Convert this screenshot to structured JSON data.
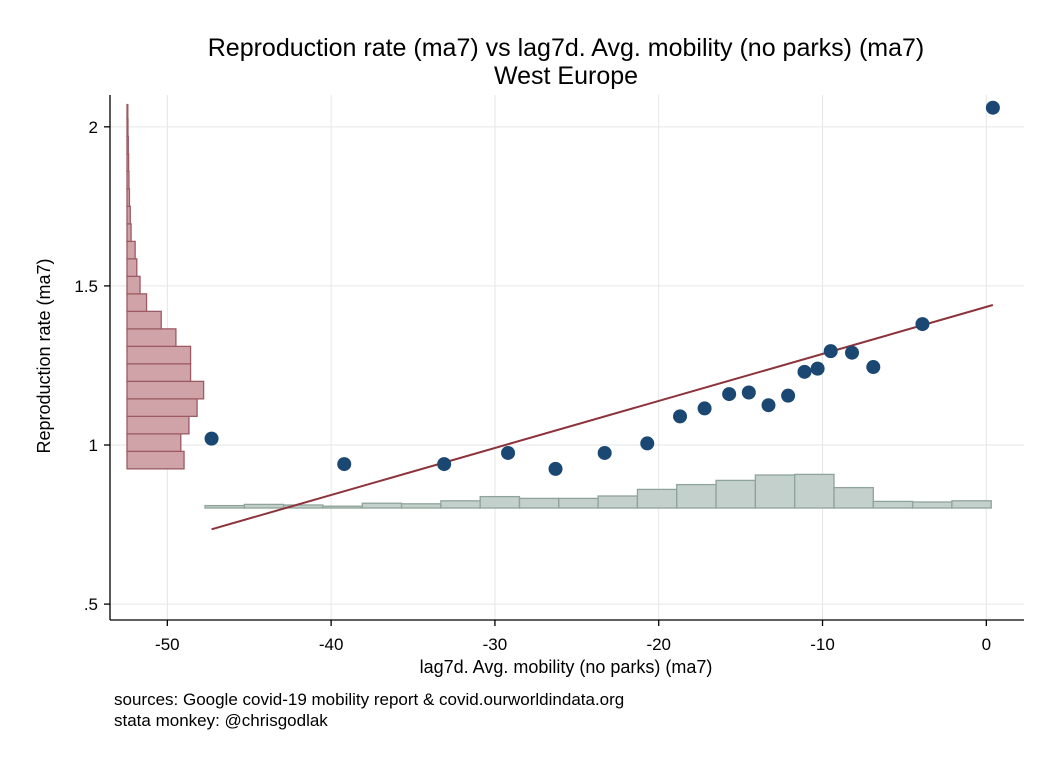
{
  "chart_data": {
    "type": "scatter",
    "title": "Reproduction rate (ma7) vs lag7d. Avg. mobility (no parks) (ma7)",
    "subtitle": "West Europe",
    "xlabel": "lag7d. Avg. mobility (no parks) (ma7)",
    "ylabel": "Reproduction rate (ma7)",
    "xlim": [
      -53.5,
      2.3
    ],
    "ylim": [
      0.45,
      2.1
    ],
    "xticks": [
      -50,
      -40,
      -30,
      -20,
      -10,
      0
    ],
    "xtick_labels": [
      "-50",
      "-40",
      "-30",
      "-20",
      "-10",
      "0"
    ],
    "yticks": [
      0.5,
      1,
      1.5,
      2
    ],
    "ytick_labels": [
      ".5",
      "1",
      "1.5",
      "2"
    ],
    "grid": true,
    "legend": "none",
    "colors": {
      "points": "#1a4873",
      "fit_line": "#8c333b",
      "y_hist_fill": "#cfa3a8",
      "y_hist_edge": "#9c5a62",
      "x_hist_fill": "#c3d0cb",
      "x_hist_edge": "#8fa39b",
      "grid": "#e6e6e6"
    },
    "points": [
      {
        "x": -47.3,
        "y": 1.02
      },
      {
        "x": -39.2,
        "y": 0.94
      },
      {
        "x": -33.1,
        "y": 0.94
      },
      {
        "x": -29.2,
        "y": 0.975
      },
      {
        "x": -26.3,
        "y": 0.925
      },
      {
        "x": -23.3,
        "y": 0.975
      },
      {
        "x": -20.7,
        "y": 1.005
      },
      {
        "x": -18.7,
        "y": 1.09
      },
      {
        "x": -17.2,
        "y": 1.115
      },
      {
        "x": -15.7,
        "y": 1.16
      },
      {
        "x": -14.5,
        "y": 1.165
      },
      {
        "x": -13.3,
        "y": 1.125
      },
      {
        "x": -12.1,
        "y": 1.155
      },
      {
        "x": -11.1,
        "y": 1.23
      },
      {
        "x": -10.3,
        "y": 1.24
      },
      {
        "x": -9.5,
        "y": 1.295
      },
      {
        "x": -8.2,
        "y": 1.29
      },
      {
        "x": -6.9,
        "y": 1.245
      },
      {
        "x": -3.9,
        "y": 1.38
      },
      {
        "x": 0.4,
        "y": 2.06
      }
    ],
    "fit_line": {
      "x": [
        -47.3,
        0.4
      ],
      "y": [
        0.735,
        1.44
      ]
    },
    "y_histogram": {
      "bins": [
        {
          "lo": 0.925,
          "hi": 0.98,
          "density": 3.5
        },
        {
          "lo": 0.98,
          "hi": 1.035,
          "density": 3.3
        },
        {
          "lo": 1.035,
          "hi": 1.09,
          "density": 3.8
        },
        {
          "lo": 1.09,
          "hi": 1.145,
          "density": 4.3
        },
        {
          "lo": 1.145,
          "hi": 1.2,
          "density": 4.7
        },
        {
          "lo": 1.2,
          "hi": 1.255,
          "density": 3.9
        },
        {
          "lo": 1.255,
          "hi": 1.31,
          "density": 3.9
        },
        {
          "lo": 1.31,
          "hi": 1.365,
          "density": 3.0
        },
        {
          "lo": 1.365,
          "hi": 1.42,
          "density": 2.1
        },
        {
          "lo": 1.42,
          "hi": 1.475,
          "density": 1.2
        },
        {
          "lo": 1.475,
          "hi": 1.53,
          "density": 0.8
        },
        {
          "lo": 1.53,
          "hi": 1.585,
          "density": 0.6
        },
        {
          "lo": 1.585,
          "hi": 1.64,
          "density": 0.5
        },
        {
          "lo": 1.64,
          "hi": 1.695,
          "density": 0.25
        },
        {
          "lo": 1.695,
          "hi": 1.75,
          "density": 0.2
        },
        {
          "lo": 1.75,
          "hi": 1.805,
          "density": 0.15
        },
        {
          "lo": 1.805,
          "hi": 1.86,
          "density": 0.12
        },
        {
          "lo": 1.86,
          "hi": 1.915,
          "density": 0.1
        },
        {
          "lo": 1.915,
          "hi": 1.97,
          "density": 0.08
        },
        {
          "lo": 1.97,
          "hi": 2.025,
          "density": 0.06
        },
        {
          "lo": 2.025,
          "hi": 2.07,
          "density": 0.05
        }
      ]
    },
    "x_histogram": {
      "bins": [
        {
          "lo": -47.7,
          "hi": -45.3,
          "density": 0.2
        },
        {
          "lo": -45.3,
          "hi": -42.9,
          "density": 0.3
        },
        {
          "lo": -42.9,
          "hi": -40.5,
          "density": 0.25
        },
        {
          "lo": -40.5,
          "hi": -38.1,
          "density": 0.15
        },
        {
          "lo": -38.1,
          "hi": -35.7,
          "density": 0.4
        },
        {
          "lo": -35.7,
          "hi": -33.3,
          "density": 0.35
        },
        {
          "lo": -33.3,
          "hi": -30.9,
          "density": 0.6
        },
        {
          "lo": -30.9,
          "hi": -28.5,
          "density": 0.95
        },
        {
          "lo": -28.5,
          "hi": -26.1,
          "density": 0.8
        },
        {
          "lo": -26.1,
          "hi": -23.7,
          "density": 0.8
        },
        {
          "lo": -23.7,
          "hi": -21.3,
          "density": 1.0
        },
        {
          "lo": -21.3,
          "hi": -18.9,
          "density": 1.55
        },
        {
          "lo": -18.9,
          "hi": -16.5,
          "density": 1.95
        },
        {
          "lo": -16.5,
          "hi": -14.1,
          "density": 2.3
        },
        {
          "lo": -14.1,
          "hi": -11.7,
          "density": 2.75
        },
        {
          "lo": -11.7,
          "hi": -9.3,
          "density": 2.8
        },
        {
          "lo": -9.3,
          "hi": -6.9,
          "density": 1.7
        },
        {
          "lo": -6.9,
          "hi": -4.5,
          "density": 0.55
        },
        {
          "lo": -4.5,
          "hi": -2.1,
          "density": 0.5
        },
        {
          "lo": -2.1,
          "hi": 0.3,
          "density": 0.6
        }
      ]
    }
  },
  "footnotes": {
    "sources": "sources: Google covid-19 mobility report & covid.ourworldindata.org",
    "credit": "stata monkey: @chrisgodlak"
  }
}
